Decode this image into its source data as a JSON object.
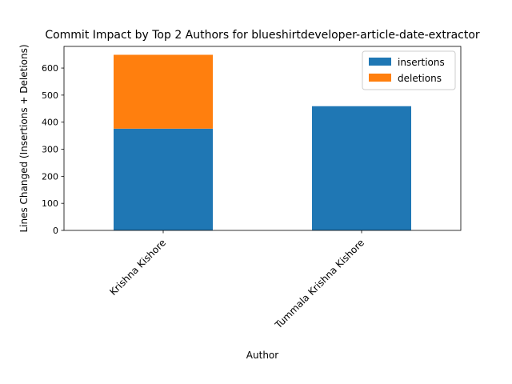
{
  "chart_data": {
    "type": "bar",
    "stacked": true,
    "title": "Commit Impact by Top 2 Authors for blueshirtdeveloper-article-date-extractor",
    "xlabel": "Author",
    "ylabel": "Lines Changed (Insertions + Deletions)",
    "categories": [
      "Krishna Kishore",
      "Tummala Krishna Kishore"
    ],
    "series": [
      {
        "name": "insertions",
        "values": [
          376,
          459
        ],
        "color": "#1f77b4"
      },
      {
        "name": "deletions",
        "values": [
          273,
          0
        ],
        "color": "#ff7f0e"
      }
    ],
    "ylim": [
      0,
      680
    ],
    "yticks": [
      0,
      100,
      200,
      300,
      400,
      500,
      600
    ],
    "legend_position": "top-right",
    "grid": false
  }
}
